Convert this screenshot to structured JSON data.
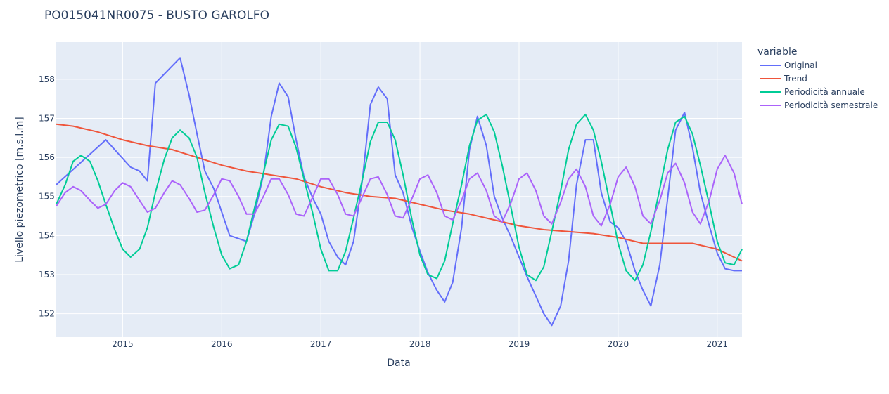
{
  "chart_data": {
    "type": "line",
    "title": "PO015041NR0075 - BUSTO GAROLFO",
    "xlabel": "Data",
    "ylabel": "Livello piezometrico [m.s.l.m]",
    "legend_title": "variable",
    "legend_position": "right",
    "grid": true,
    "xlim": [
      2014.33,
      2021.25
    ],
    "ylim": [
      151.4,
      158.95
    ],
    "x_ticks": [
      2015,
      2016,
      2017,
      2018,
      2019,
      2020,
      2021
    ],
    "x_tick_labels": [
      "2015",
      "2016",
      "2017",
      "2018",
      "2019",
      "2020",
      "2021"
    ],
    "y_ticks": [
      152,
      153,
      154,
      155,
      156,
      157,
      158
    ],
    "y_tick_labels": [
      "152",
      "153",
      "154",
      "155",
      "156",
      "157",
      "158"
    ],
    "colors": {
      "plot_bg": "#E5ECF6",
      "grid": "#ffffff",
      "text": "#2a3f5f",
      "Original": "#636efa",
      "Trend": "#EF553B",
      "Periodicita_annuale": "#00cc96",
      "Periodicita_semestrale": "#ab63fa"
    },
    "series": [
      {
        "name": "Original",
        "color": "#636efa",
        "points": [
          [
            2014.33,
            155.3
          ],
          [
            2014.83,
            156.45
          ],
          [
            2015.08,
            155.75
          ],
          [
            2015.17,
            155.65
          ],
          [
            2015.25,
            155.4
          ],
          [
            2015.33,
            157.9
          ],
          [
            2015.58,
            158.55
          ],
          [
            2015.67,
            157.6
          ],
          [
            2015.75,
            156.6
          ],
          [
            2015.83,
            155.65
          ],
          [
            2015.92,
            155.2
          ],
          [
            2016.08,
            154.0
          ],
          [
            2016.25,
            153.85
          ],
          [
            2016.33,
            154.55
          ],
          [
            2016.42,
            155.55
          ],
          [
            2016.5,
            157.05
          ],
          [
            2016.58,
            157.9
          ],
          [
            2016.67,
            157.55
          ],
          [
            2016.75,
            156.45
          ],
          [
            2016.83,
            155.5
          ],
          [
            2016.92,
            154.95
          ],
          [
            2017.0,
            154.55
          ],
          [
            2017.08,
            153.85
          ],
          [
            2017.17,
            153.45
          ],
          [
            2017.25,
            153.25
          ],
          [
            2017.33,
            153.85
          ],
          [
            2017.42,
            155.45
          ],
          [
            2017.5,
            157.35
          ],
          [
            2017.58,
            157.8
          ],
          [
            2017.67,
            157.5
          ],
          [
            2017.75,
            155.55
          ],
          [
            2017.83,
            155.1
          ],
          [
            2017.92,
            154.2
          ],
          [
            2018.0,
            153.6
          ],
          [
            2018.08,
            153.05
          ],
          [
            2018.17,
            152.6
          ],
          [
            2018.25,
            152.3
          ],
          [
            2018.33,
            152.8
          ],
          [
            2018.42,
            154.2
          ],
          [
            2018.5,
            156.2
          ],
          [
            2018.58,
            157.05
          ],
          [
            2018.67,
            156.3
          ],
          [
            2018.75,
            155.0
          ],
          [
            2018.83,
            154.45
          ],
          [
            2018.92,
            153.95
          ],
          [
            2019.0,
            153.45
          ],
          [
            2019.08,
            152.95
          ],
          [
            2019.17,
            152.45
          ],
          [
            2019.25,
            152.0
          ],
          [
            2019.33,
            151.7
          ],
          [
            2019.42,
            152.2
          ],
          [
            2019.5,
            153.35
          ],
          [
            2019.58,
            155.3
          ],
          [
            2019.67,
            156.45
          ],
          [
            2019.75,
            156.45
          ],
          [
            2019.83,
            155.1
          ],
          [
            2019.92,
            154.35
          ],
          [
            2020.0,
            154.2
          ],
          [
            2020.08,
            153.85
          ],
          [
            2020.17,
            153.1
          ],
          [
            2020.25,
            152.6
          ],
          [
            2020.33,
            152.2
          ],
          [
            2020.42,
            153.25
          ],
          [
            2020.5,
            154.95
          ],
          [
            2020.58,
            156.7
          ],
          [
            2020.67,
            157.15
          ],
          [
            2020.75,
            156.25
          ],
          [
            2020.83,
            155.1
          ],
          [
            2020.92,
            154.25
          ],
          [
            2021.0,
            153.55
          ],
          [
            2021.08,
            153.15
          ],
          [
            2021.17,
            153.1
          ],
          [
            2021.25,
            153.1
          ]
        ]
      },
      {
        "name": "Trend",
        "color": "#EF553B",
        "points": [
          [
            2014.33,
            156.85
          ],
          [
            2014.5,
            156.8
          ],
          [
            2014.75,
            156.65
          ],
          [
            2015.0,
            156.45
          ],
          [
            2015.25,
            156.3
          ],
          [
            2015.5,
            156.2
          ],
          [
            2015.75,
            156.0
          ],
          [
            2016.0,
            155.8
          ],
          [
            2016.25,
            155.65
          ],
          [
            2016.5,
            155.55
          ],
          [
            2016.75,
            155.45
          ],
          [
            2017.0,
            155.25
          ],
          [
            2017.25,
            155.1
          ],
          [
            2017.5,
            155.0
          ],
          [
            2017.75,
            154.95
          ],
          [
            2018.0,
            154.8
          ],
          [
            2018.25,
            154.65
          ],
          [
            2018.5,
            154.55
          ],
          [
            2018.75,
            154.4
          ],
          [
            2019.0,
            154.25
          ],
          [
            2019.25,
            154.15
          ],
          [
            2019.5,
            154.1
          ],
          [
            2019.75,
            154.05
          ],
          [
            2020.0,
            153.95
          ],
          [
            2020.25,
            153.8
          ],
          [
            2020.5,
            153.8
          ],
          [
            2020.75,
            153.8
          ],
          [
            2021.0,
            153.65
          ],
          [
            2021.25,
            153.35
          ]
        ]
      },
      {
        "name": "Periodicità annuale",
        "color": "#00cc96",
        "points": [
          [
            2014.33,
            154.8
          ],
          [
            2014.42,
            155.3
          ],
          [
            2014.5,
            155.9
          ],
          [
            2014.58,
            156.05
          ],
          [
            2014.67,
            155.9
          ],
          [
            2014.75,
            155.4
          ],
          [
            2014.83,
            154.8
          ],
          [
            2014.92,
            154.15
          ],
          [
            2015.0,
            153.65
          ],
          [
            2015.08,
            153.45
          ],
          [
            2015.17,
            153.65
          ],
          [
            2015.25,
            154.2
          ],
          [
            2015.33,
            155.1
          ],
          [
            2015.42,
            155.95
          ],
          [
            2015.5,
            156.5
          ],
          [
            2015.58,
            156.7
          ],
          [
            2015.67,
            156.5
          ],
          [
            2015.75,
            156.0
          ],
          [
            2015.83,
            155.1
          ],
          [
            2015.92,
            154.2
          ],
          [
            2016.0,
            153.5
          ],
          [
            2016.08,
            153.15
          ],
          [
            2016.17,
            153.25
          ],
          [
            2016.25,
            153.85
          ],
          [
            2016.33,
            154.7
          ],
          [
            2016.42,
            155.6
          ],
          [
            2016.5,
            156.45
          ],
          [
            2016.58,
            156.85
          ],
          [
            2016.67,
            156.8
          ],
          [
            2016.75,
            156.25
          ],
          [
            2016.83,
            155.45
          ],
          [
            2016.92,
            154.55
          ],
          [
            2017.0,
            153.65
          ],
          [
            2017.08,
            153.1
          ],
          [
            2017.17,
            153.1
          ],
          [
            2017.25,
            153.6
          ],
          [
            2017.33,
            154.45
          ],
          [
            2017.42,
            155.45
          ],
          [
            2017.5,
            156.4
          ],
          [
            2017.58,
            156.9
          ],
          [
            2017.67,
            156.9
          ],
          [
            2017.75,
            156.45
          ],
          [
            2017.83,
            155.55
          ],
          [
            2017.92,
            154.4
          ],
          [
            2018.0,
            153.5
          ],
          [
            2018.08,
            153.0
          ],
          [
            2018.17,
            152.9
          ],
          [
            2018.25,
            153.35
          ],
          [
            2018.33,
            154.3
          ],
          [
            2018.42,
            155.3
          ],
          [
            2018.5,
            156.3
          ],
          [
            2018.58,
            156.95
          ],
          [
            2018.67,
            157.1
          ],
          [
            2018.75,
            156.65
          ],
          [
            2018.83,
            155.8
          ],
          [
            2018.92,
            154.7
          ],
          [
            2019.0,
            153.7
          ],
          [
            2019.08,
            153.0
          ],
          [
            2019.17,
            152.85
          ],
          [
            2019.25,
            153.2
          ],
          [
            2019.33,
            154.1
          ],
          [
            2019.42,
            155.15
          ],
          [
            2019.5,
            156.2
          ],
          [
            2019.58,
            156.85
          ],
          [
            2019.67,
            157.1
          ],
          [
            2019.75,
            156.7
          ],
          [
            2019.83,
            155.9
          ],
          [
            2019.92,
            154.8
          ],
          [
            2020.0,
            153.8
          ],
          [
            2020.08,
            153.1
          ],
          [
            2020.17,
            152.85
          ],
          [
            2020.25,
            153.25
          ],
          [
            2020.33,
            154.1
          ],
          [
            2020.42,
            155.2
          ],
          [
            2020.5,
            156.2
          ],
          [
            2020.58,
            156.9
          ],
          [
            2020.67,
            157.05
          ],
          [
            2020.75,
            156.6
          ],
          [
            2020.83,
            155.8
          ],
          [
            2020.92,
            154.8
          ],
          [
            2021.0,
            153.85
          ],
          [
            2021.08,
            153.3
          ],
          [
            2021.17,
            153.25
          ],
          [
            2021.25,
            153.65
          ]
        ]
      },
      {
        "name": "Periodicità semestrale",
        "color": "#ab63fa",
        "points": [
          [
            2014.33,
            154.75
          ],
          [
            2014.42,
            155.1
          ],
          [
            2014.5,
            155.25
          ],
          [
            2014.58,
            155.15
          ],
          [
            2014.67,
            154.9
          ],
          [
            2014.75,
            154.7
          ],
          [
            2014.83,
            154.8
          ],
          [
            2014.92,
            155.15
          ],
          [
            2015.0,
            155.35
          ],
          [
            2015.08,
            155.25
          ],
          [
            2015.17,
            154.9
          ],
          [
            2015.25,
            154.6
          ],
          [
            2015.33,
            154.7
          ],
          [
            2015.42,
            155.1
          ],
          [
            2015.5,
            155.4
          ],
          [
            2015.58,
            155.3
          ],
          [
            2015.67,
            154.95
          ],
          [
            2015.75,
            154.6
          ],
          [
            2015.83,
            154.65
          ],
          [
            2015.92,
            155.05
          ],
          [
            2016.0,
            155.45
          ],
          [
            2016.08,
            155.4
          ],
          [
            2016.17,
            155.0
          ],
          [
            2016.25,
            154.55
          ],
          [
            2016.33,
            154.55
          ],
          [
            2016.42,
            155.0
          ],
          [
            2016.5,
            155.45
          ],
          [
            2016.58,
            155.45
          ],
          [
            2016.67,
            155.05
          ],
          [
            2016.75,
            154.55
          ],
          [
            2016.83,
            154.5
          ],
          [
            2016.92,
            155.0
          ],
          [
            2017.0,
            155.45
          ],
          [
            2017.08,
            155.45
          ],
          [
            2017.17,
            155.05
          ],
          [
            2017.25,
            154.55
          ],
          [
            2017.33,
            154.5
          ],
          [
            2017.42,
            155.0
          ],
          [
            2017.5,
            155.45
          ],
          [
            2017.58,
            155.5
          ],
          [
            2017.67,
            155.05
          ],
          [
            2017.75,
            154.5
          ],
          [
            2017.83,
            154.45
          ],
          [
            2017.92,
            154.95
          ],
          [
            2018.0,
            155.45
          ],
          [
            2018.08,
            155.55
          ],
          [
            2018.17,
            155.1
          ],
          [
            2018.25,
            154.5
          ],
          [
            2018.33,
            154.4
          ],
          [
            2018.42,
            154.9
          ],
          [
            2018.5,
            155.45
          ],
          [
            2018.58,
            155.6
          ],
          [
            2018.67,
            155.15
          ],
          [
            2018.75,
            154.5
          ],
          [
            2018.83,
            154.35
          ],
          [
            2018.92,
            154.85
          ],
          [
            2019.0,
            155.45
          ],
          [
            2019.08,
            155.6
          ],
          [
            2019.17,
            155.15
          ],
          [
            2019.25,
            154.5
          ],
          [
            2019.33,
            154.3
          ],
          [
            2019.42,
            154.85
          ],
          [
            2019.5,
            155.45
          ],
          [
            2019.58,
            155.7
          ],
          [
            2019.67,
            155.25
          ],
          [
            2019.75,
            154.5
          ],
          [
            2019.83,
            154.25
          ],
          [
            2019.92,
            154.8
          ],
          [
            2020.0,
            155.5
          ],
          [
            2020.08,
            155.75
          ],
          [
            2020.17,
            155.25
          ],
          [
            2020.25,
            154.5
          ],
          [
            2020.33,
            154.3
          ],
          [
            2020.42,
            154.9
          ],
          [
            2020.5,
            155.6
          ],
          [
            2020.58,
            155.85
          ],
          [
            2020.67,
            155.35
          ],
          [
            2020.75,
            154.6
          ],
          [
            2020.83,
            154.3
          ],
          [
            2020.92,
            154.9
          ],
          [
            2021.0,
            155.7
          ],
          [
            2021.08,
            156.05
          ],
          [
            2021.17,
            155.6
          ],
          [
            2021.25,
            154.8
          ]
        ]
      }
    ]
  }
}
